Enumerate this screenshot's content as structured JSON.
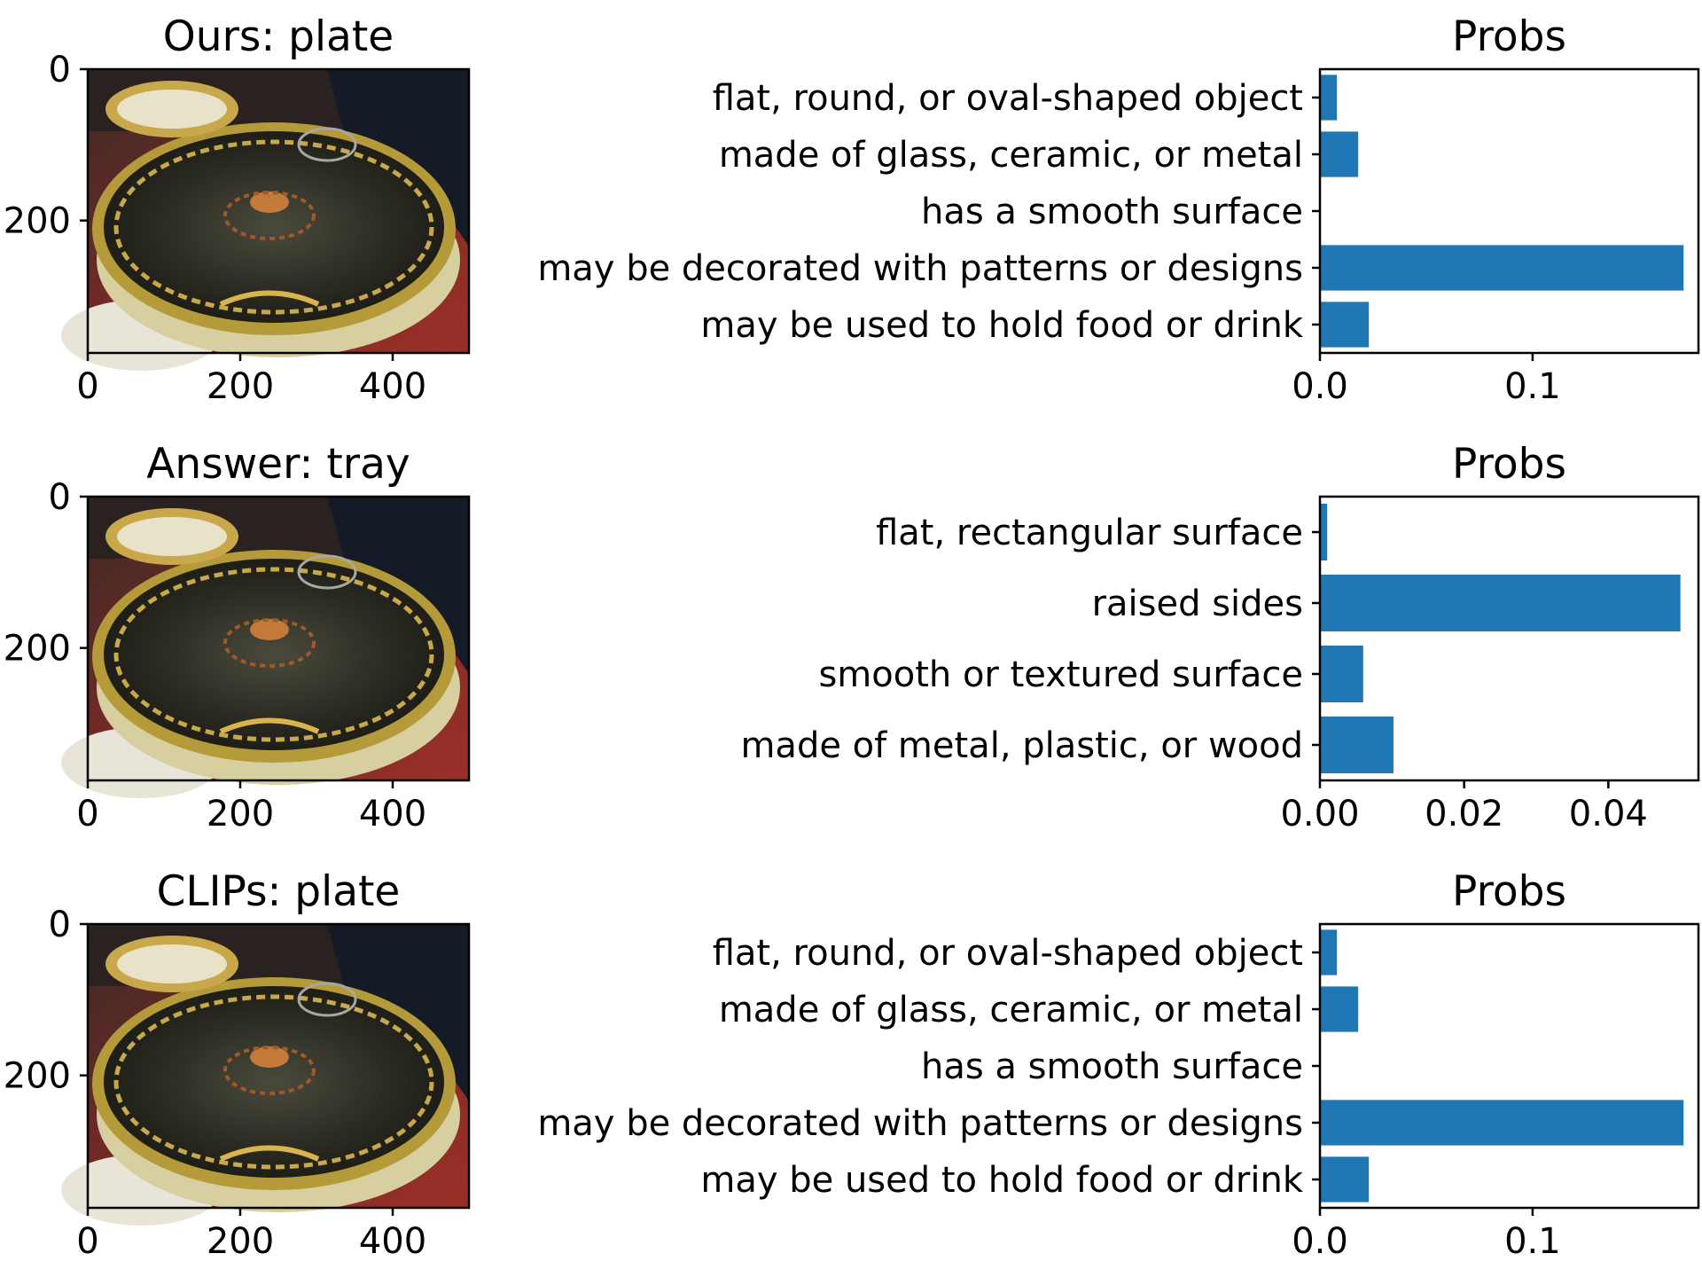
{
  "figure": {
    "bar_color": "#1f77b4",
    "rows": [
      {
        "image_panel": {
          "title": "Ours: plate",
          "xticks": [
            "0",
            "200",
            "400"
          ],
          "yticks": [
            "0",
            "200"
          ],
          "xlim": [
            0,
            500
          ],
          "ylim": [
            375,
            0
          ]
        },
        "chart": {
          "title": "Probs",
          "categories": [
            "flat, round, or oval-shaped object",
            "made of glass, ceramic, or metal",
            "has a smooth surface",
            "may be decorated with patterns or designs",
            "may be used to hold food or drink"
          ],
          "values": [
            0.008,
            0.018,
            0.0,
            0.171,
            0.023
          ],
          "xlim": [
            0,
            0.178
          ],
          "xticks": [
            0.0,
            0.1
          ],
          "xtick_labels": [
            "0.0",
            "0.1"
          ]
        }
      },
      {
        "image_panel": {
          "title": "Answer: tray",
          "xticks": [
            "0",
            "200",
            "400"
          ],
          "yticks": [
            "0",
            "200"
          ],
          "xlim": [
            0,
            500
          ],
          "ylim": [
            375,
            0
          ]
        },
        "chart": {
          "title": "Probs",
          "categories": [
            "flat, rectangular surface",
            "raised sides",
            "smooth or textured surface",
            "made of metal, plastic, or wood"
          ],
          "values": [
            0.001,
            0.05,
            0.006,
            0.0102
          ],
          "xlim": [
            0,
            0.0525
          ],
          "xticks": [
            0.0,
            0.02,
            0.04
          ],
          "xtick_labels": [
            "0.00",
            "0.02",
            "0.04"
          ]
        }
      },
      {
        "image_panel": {
          "title": "CLIPs: plate",
          "xticks": [
            "0",
            "200",
            "400"
          ],
          "yticks": [
            "0",
            "200"
          ],
          "xlim": [
            0,
            500
          ],
          "ylim": [
            375,
            0
          ]
        },
        "chart": {
          "title": "Probs",
          "categories": [
            "flat, round, or oval-shaped object",
            "made of glass, ceramic, or metal",
            "has a smooth surface",
            "may be decorated with patterns or designs",
            "may be used to hold food or drink"
          ],
          "values": [
            0.008,
            0.018,
            0.0,
            0.171,
            0.023
          ],
          "xlim": [
            0,
            0.178
          ],
          "xticks": [
            0.0,
            0.1
          ],
          "xtick_labels": [
            "0.0",
            "0.1"
          ]
        }
      }
    ]
  },
  "chart_data": [
    {
      "type": "bar",
      "orientation": "horizontal",
      "title": "Probs",
      "categories": [
        "flat, round, or oval-shaped object",
        "made of glass, ceramic, or metal",
        "has a smooth surface",
        "may be decorated with patterns or designs",
        "may be used to hold food or drink"
      ],
      "values": [
        0.008,
        0.018,
        0.0,
        0.171,
        0.023
      ],
      "xlim": [
        0,
        0.178
      ],
      "xticks": [
        "0.0",
        "0.1"
      ],
      "grid": false
    },
    {
      "type": "bar",
      "orientation": "horizontal",
      "title": "Probs",
      "categories": [
        "flat, rectangular surface",
        "raised sides",
        "smooth or textured surface",
        "made of metal, plastic, or wood"
      ],
      "values": [
        0.001,
        0.05,
        0.006,
        0.0102
      ],
      "xlim": [
        0,
        0.0525
      ],
      "xticks": [
        "0.00",
        "0.02",
        "0.04"
      ],
      "grid": false
    },
    {
      "type": "bar",
      "orientation": "horizontal",
      "title": "Probs",
      "categories": [
        "flat, round, or oval-shaped object",
        "made of glass, ceramic, or metal",
        "has a smooth surface",
        "may be decorated with patterns or designs",
        "may be used to hold food or drink"
      ],
      "values": [
        0.008,
        0.018,
        0.0,
        0.171,
        0.023
      ],
      "xlim": [
        0,
        0.178
      ],
      "xticks": [
        "0.0",
        "0.1"
      ],
      "grid": false
    }
  ]
}
